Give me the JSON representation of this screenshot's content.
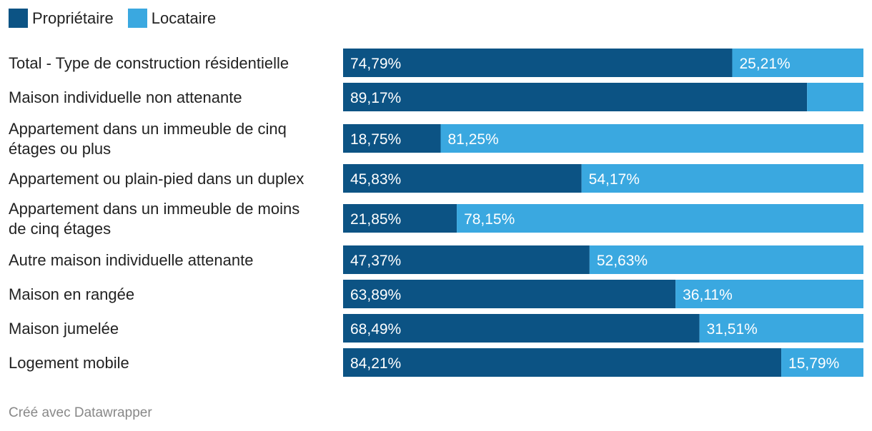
{
  "chart_data": {
    "type": "stacked-bar-horizontal",
    "series": [
      {
        "name": "Propriétaire",
        "color": "#0c5384",
        "values": [
          74.79,
          89.17,
          18.75,
          45.83,
          21.85,
          47.37,
          63.89,
          68.49,
          84.21
        ],
        "labels": [
          "74,79%",
          "89,17%",
          "18,75%",
          "45,83%",
          "21,85%",
          "47,37%",
          "63,89%",
          "68,49%",
          "84,21%"
        ]
      },
      {
        "name": "Locataire",
        "color": "#3aa8e0",
        "values": [
          25.21,
          10.83,
          81.25,
          54.17,
          78.15,
          52.63,
          36.11,
          31.51,
          15.79
        ],
        "labels": [
          "25,21%",
          "",
          "81,25%",
          "54,17%",
          "78,15%",
          "52,63%",
          "36,11%",
          "31,51%",
          "15,79%"
        ]
      }
    ],
    "categories": [
      [
        "Total - Type de construction résidentielle"
      ],
      [
        "Maison individuelle non attenante"
      ],
      [
        "Appartement dans un immeuble de cinq",
        "étages ou plus"
      ],
      [
        "Appartement ou plain-pied dans un duplex"
      ],
      [
        "Appartement dans un immeuble de moins",
        "de cinq étages"
      ],
      [
        "Autre maison individuelle attenante"
      ],
      [
        "Maison en rangée"
      ],
      [
        "Maison jumelée"
      ],
      [
        "Logement mobile"
      ]
    ],
    "xlim": [
      0,
      100
    ]
  },
  "legend": {
    "owner_label": "Propriétaire",
    "renter_label": "Locataire",
    "owner_color": "#0c5384",
    "renter_color": "#3aa8e0"
  },
  "footer": {
    "credit": "Créé avec Datawrapper"
  }
}
